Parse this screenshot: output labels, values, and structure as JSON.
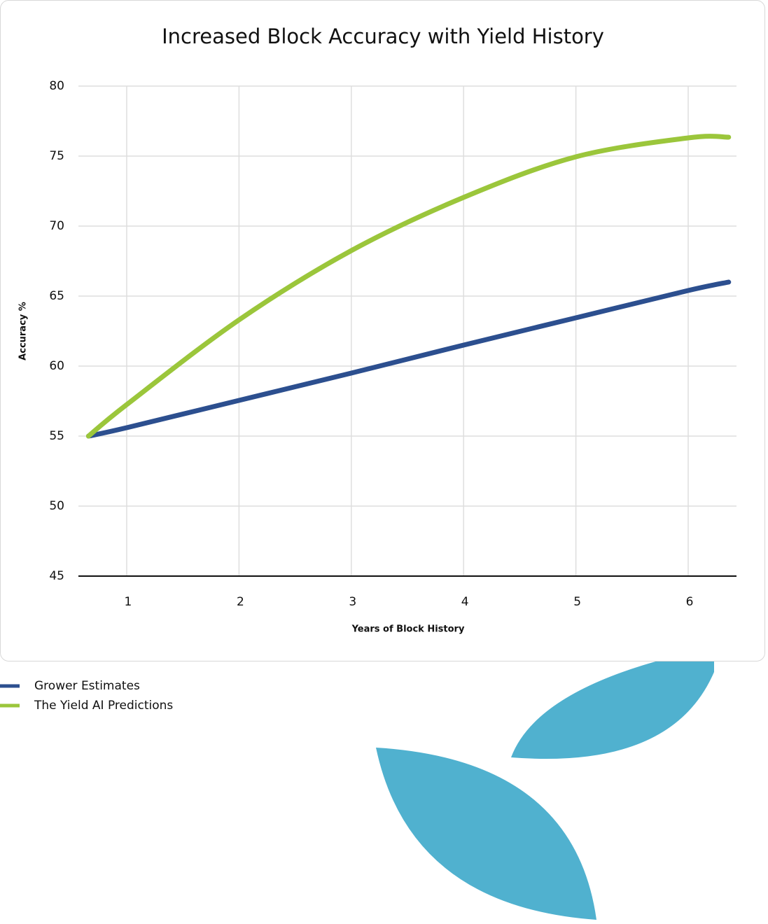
{
  "chart_data": {
    "type": "line",
    "title": "Increased Block Accuracy with Yield History",
    "x_label": "Years of Block History",
    "y_label": "Accuracy %",
    "x": [
      0.66,
      1,
      2,
      3,
      4,
      5,
      6,
      6.36
    ],
    "series": [
      {
        "name": "Grower Estimates",
        "color": "#2c4f8f",
        "values": [
          55,
          55.6,
          57.55,
          59.5,
          61.5,
          63.45,
          65.4,
          66
        ]
      },
      {
        "name": "The Yield AI Predictions",
        "color": "#9bc63b",
        "values": [
          55,
          57.25,
          63.3,
          68.25,
          72.05,
          74.95,
          76.3,
          76.35
        ]
      }
    ],
    "xlim": [
      0.57,
      6.43
    ],
    "xticks": [
      1,
      2,
      3,
      4,
      5,
      6
    ],
    "ylim": [
      45,
      80
    ],
    "yticks": [
      45,
      50,
      55,
      60,
      65,
      70,
      75,
      80
    ],
    "grid": true
  }
}
